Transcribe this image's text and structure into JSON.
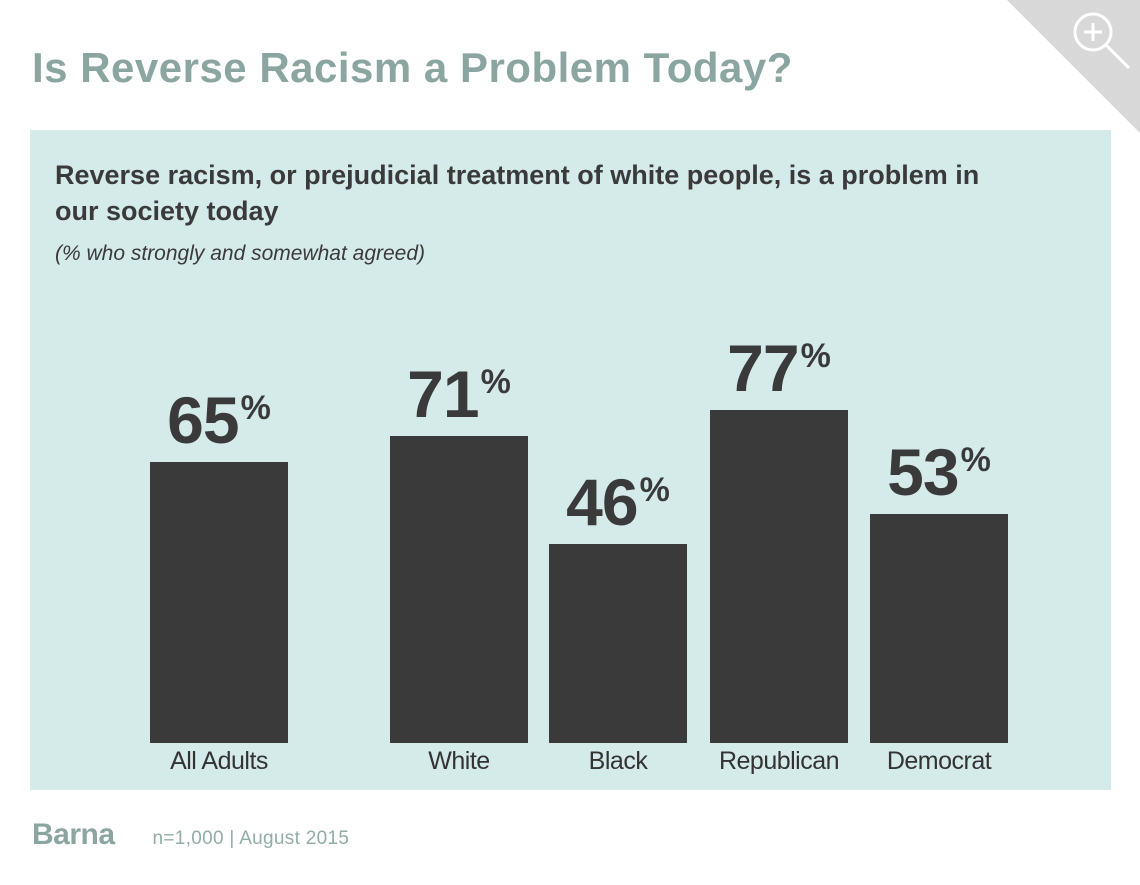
{
  "page": {
    "title": "Is Reverse Racism a Problem Today?"
  },
  "panel": {
    "headline": "Reverse racism, or prejudicial treatment of white people, is a problem in our society today",
    "subtitle": "(% who strongly and somewhat agreed)"
  },
  "chart_data": {
    "type": "bar",
    "title": "Reverse racism, or prejudicial treatment of white people, is a problem in our society today",
    "subtitle": "(% who strongly and somewhat agreed)",
    "categories": [
      "All Adults",
      "White",
      "Black",
      "Republican",
      "Democrat"
    ],
    "values": [
      65,
      71,
      46,
      77,
      53
    ],
    "unit": "%",
    "ylim": [
      0,
      100
    ],
    "grid": false,
    "legend": "none",
    "data_labels": "above-bars",
    "bar_color": "#3A3A3A",
    "background": "#D5EBEA",
    "groups": [
      [
        "All Adults"
      ],
      [
        "White",
        "Black"
      ],
      [
        "Republican",
        "Democrat"
      ]
    ]
  },
  "icons": {
    "zoom": "magnifier-plus-icon"
  },
  "footer": {
    "logo": "Barna",
    "meta": "n=1,000 | August 2015"
  },
  "colors": {
    "accent": "#8BA5A1",
    "bar": "#3A3A3A",
    "panel_bg": "#D5EBEA",
    "corner_ribbon": "#D8D8D8",
    "text_dark": "#3A3A3A"
  }
}
